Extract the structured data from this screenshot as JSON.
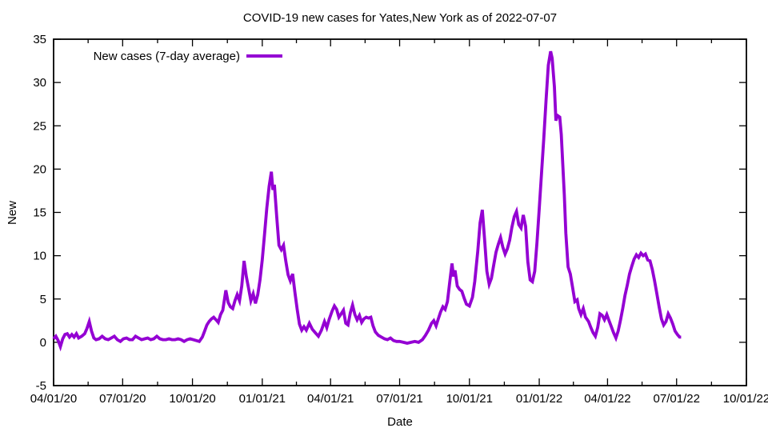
{
  "page": {
    "title": "COVID-19 new cases for Yates,New York as of 2022-07-07"
  },
  "chart_data": {
    "type": "line",
    "title": "COVID-19 new cases for Yates,New York as of 2022-07-07",
    "xlabel": "Date",
    "ylabel": "New",
    "grid": false,
    "background": "#ffffff",
    "line_color": "#9400d3",
    "legend": {
      "label": "New cases (7-day average)",
      "position": "top-left-inside"
    },
    "ylim": [
      -5,
      35
    ],
    "y_tick_step": 5,
    "x_range": [
      "2020-04-01",
      "2022-10-01"
    ],
    "x_ticks": [
      {
        "date": "2020-04-01",
        "label": "04/01/20"
      },
      {
        "date": "2020-07-01",
        "label": "07/01/20"
      },
      {
        "date": "2020-10-01",
        "label": "10/01/20"
      },
      {
        "date": "2021-01-01",
        "label": "01/01/21"
      },
      {
        "date": "2021-04-01",
        "label": "04/01/21"
      },
      {
        "date": "2021-07-01",
        "label": "07/01/21"
      },
      {
        "date": "2021-10-01",
        "label": "10/01/21"
      },
      {
        "date": "2022-01-01",
        "label": "01/01/22"
      },
      {
        "date": "2022-04-01",
        "label": "04/01/22"
      },
      {
        "date": "2022-07-01",
        "label": "07/01/22"
      },
      {
        "date": "2022-10-01",
        "label": "10/01/22"
      }
    ],
    "series": [
      {
        "name": "New cases (7-day average)",
        "color": "#9400d3",
        "points": [
          [
            "2020-04-01",
            0.4
          ],
          [
            "2020-04-04",
            0.7
          ],
          [
            "2020-04-07",
            0.2
          ],
          [
            "2020-04-10",
            -0.5
          ],
          [
            "2020-04-13",
            0.4
          ],
          [
            "2020-04-16",
            0.9
          ],
          [
            "2020-04-19",
            1.0
          ],
          [
            "2020-04-22",
            0.6
          ],
          [
            "2020-04-25",
            0.9
          ],
          [
            "2020-04-28",
            0.6
          ],
          [
            "2020-05-01",
            1.0
          ],
          [
            "2020-05-04",
            0.5
          ],
          [
            "2020-05-08",
            0.7
          ],
          [
            "2020-05-12",
            1.0
          ],
          [
            "2020-05-15",
            1.6
          ],
          [
            "2020-05-18",
            2.4
          ],
          [
            "2020-05-21",
            1.3
          ],
          [
            "2020-05-24",
            0.5
          ],
          [
            "2020-05-27",
            0.3
          ],
          [
            "2020-05-31",
            0.4
          ],
          [
            "2020-06-04",
            0.7
          ],
          [
            "2020-06-08",
            0.4
          ],
          [
            "2020-06-12",
            0.3
          ],
          [
            "2020-06-16",
            0.5
          ],
          [
            "2020-06-20",
            0.7
          ],
          [
            "2020-06-24",
            0.3
          ],
          [
            "2020-06-28",
            0.1
          ],
          [
            "2020-07-02",
            0.4
          ],
          [
            "2020-07-06",
            0.5
          ],
          [
            "2020-07-10",
            0.3
          ],
          [
            "2020-07-14",
            0.3
          ],
          [
            "2020-07-18",
            0.7
          ],
          [
            "2020-07-22",
            0.5
          ],
          [
            "2020-07-26",
            0.3
          ],
          [
            "2020-07-30",
            0.4
          ],
          [
            "2020-08-03",
            0.5
          ],
          [
            "2020-08-07",
            0.3
          ],
          [
            "2020-08-11",
            0.4
          ],
          [
            "2020-08-15",
            0.7
          ],
          [
            "2020-08-19",
            0.4
          ],
          [
            "2020-08-23",
            0.3
          ],
          [
            "2020-08-27",
            0.3
          ],
          [
            "2020-08-31",
            0.4
          ],
          [
            "2020-09-04",
            0.3
          ],
          [
            "2020-09-08",
            0.3
          ],
          [
            "2020-09-12",
            0.4
          ],
          [
            "2020-09-16",
            0.3
          ],
          [
            "2020-09-20",
            0.1
          ],
          [
            "2020-09-24",
            0.3
          ],
          [
            "2020-09-28",
            0.4
          ],
          [
            "2020-10-02",
            0.3
          ],
          [
            "2020-10-06",
            0.2
          ],
          [
            "2020-10-10",
            0.1
          ],
          [
            "2020-10-14",
            0.6
          ],
          [
            "2020-10-17",
            1.3
          ],
          [
            "2020-10-20",
            2.0
          ],
          [
            "2020-10-23",
            2.4
          ],
          [
            "2020-10-26",
            2.7
          ],
          [
            "2020-10-29",
            2.9
          ],
          [
            "2020-11-01",
            2.6
          ],
          [
            "2020-11-04",
            2.3
          ],
          [
            "2020-11-07",
            3.2
          ],
          [
            "2020-11-10",
            3.7
          ],
          [
            "2020-11-14",
            6.0
          ],
          [
            "2020-11-17",
            4.6
          ],
          [
            "2020-11-20",
            4.1
          ],
          [
            "2020-11-23",
            3.9
          ],
          [
            "2020-11-26",
            4.8
          ],
          [
            "2020-11-29",
            5.5
          ],
          [
            "2020-12-02",
            4.8
          ],
          [
            "2020-12-05",
            6.5
          ],
          [
            "2020-12-08",
            9.4
          ],
          [
            "2020-12-11",
            7.6
          ],
          [
            "2020-12-14",
            6.2
          ],
          [
            "2020-12-17",
            4.8
          ],
          [
            "2020-12-20",
            5.6
          ],
          [
            "2020-12-23",
            4.5
          ],
          [
            "2020-12-26",
            5.5
          ],
          [
            "2020-12-29",
            7.2
          ],
          [
            "2021-01-01",
            9.5
          ],
          [
            "2021-01-04",
            12.5
          ],
          [
            "2021-01-07",
            15.5
          ],
          [
            "2021-01-10",
            18.0
          ],
          [
            "2021-01-13",
            19.7
          ],
          [
            "2021-01-15",
            17.6
          ],
          [
            "2021-01-17",
            18.2
          ],
          [
            "2021-01-20",
            14.5
          ],
          [
            "2021-01-23",
            11.2
          ],
          [
            "2021-01-26",
            10.7
          ],
          [
            "2021-01-29",
            11.2
          ],
          [
            "2021-02-01",
            9.4
          ],
          [
            "2021-02-04",
            7.8
          ],
          [
            "2021-02-07",
            7.1
          ],
          [
            "2021-02-10",
            7.9
          ],
          [
            "2021-02-13",
            5.8
          ],
          [
            "2021-02-16",
            3.8
          ],
          [
            "2021-02-19",
            2.1
          ],
          [
            "2021-02-22",
            1.4
          ],
          [
            "2021-02-25",
            1.8
          ],
          [
            "2021-02-28",
            1.4
          ],
          [
            "2021-03-04",
            2.2
          ],
          [
            "2021-03-08",
            1.5
          ],
          [
            "2021-03-12",
            1.1
          ],
          [
            "2021-03-16",
            0.7
          ],
          [
            "2021-03-20",
            1.4
          ],
          [
            "2021-03-24",
            2.4
          ],
          [
            "2021-03-27",
            1.7
          ],
          [
            "2021-03-30",
            2.6
          ],
          [
            "2021-04-03",
            3.6
          ],
          [
            "2021-04-06",
            4.2
          ],
          [
            "2021-04-09",
            3.8
          ],
          [
            "2021-04-12",
            2.9
          ],
          [
            "2021-04-15",
            3.3
          ],
          [
            "2021-04-18",
            3.7
          ],
          [
            "2021-04-21",
            2.2
          ],
          [
            "2021-04-24",
            2.0
          ],
          [
            "2021-04-27",
            3.4
          ],
          [
            "2021-04-30",
            4.3
          ],
          [
            "2021-05-03",
            3.2
          ],
          [
            "2021-05-06",
            2.6
          ],
          [
            "2021-05-09",
            3.1
          ],
          [
            "2021-05-12",
            2.3
          ],
          [
            "2021-05-15",
            2.7
          ],
          [
            "2021-05-18",
            2.9
          ],
          [
            "2021-05-21",
            2.8
          ],
          [
            "2021-05-24",
            2.9
          ],
          [
            "2021-05-27",
            1.9
          ],
          [
            "2021-05-30",
            1.2
          ],
          [
            "2021-06-03",
            0.8
          ],
          [
            "2021-06-07",
            0.6
          ],
          [
            "2021-06-11",
            0.4
          ],
          [
            "2021-06-15",
            0.3
          ],
          [
            "2021-06-19",
            0.5
          ],
          [
            "2021-06-23",
            0.2
          ],
          [
            "2021-06-27",
            0.1
          ],
          [
            "2021-07-01",
            0.1
          ],
          [
            "2021-07-06",
            0.0
          ],
          [
            "2021-07-11",
            -0.1
          ],
          [
            "2021-07-16",
            0.0
          ],
          [
            "2021-07-21",
            0.1
          ],
          [
            "2021-07-26",
            0.0
          ],
          [
            "2021-07-31",
            0.3
          ],
          [
            "2021-08-04",
            0.8
          ],
          [
            "2021-08-08",
            1.4
          ],
          [
            "2021-08-12",
            2.2
          ],
          [
            "2021-08-15",
            2.5
          ],
          [
            "2021-08-18",
            1.9
          ],
          [
            "2021-08-21",
            2.7
          ],
          [
            "2021-08-24",
            3.5
          ],
          [
            "2021-08-27",
            4.1
          ],
          [
            "2021-08-30",
            3.8
          ],
          [
            "2021-09-02",
            4.7
          ],
          [
            "2021-09-05",
            6.9
          ],
          [
            "2021-09-08",
            9.1
          ],
          [
            "2021-09-10",
            7.6
          ],
          [
            "2021-09-12",
            8.3
          ],
          [
            "2021-09-15",
            6.5
          ],
          [
            "2021-09-18",
            6.1
          ],
          [
            "2021-09-21",
            5.9
          ],
          [
            "2021-09-24",
            5.1
          ],
          [
            "2021-09-27",
            4.4
          ],
          [
            "2021-10-01",
            4.2
          ],
          [
            "2021-10-05",
            5.2
          ],
          [
            "2021-10-08",
            7.0
          ],
          [
            "2021-10-12",
            10.5
          ],
          [
            "2021-10-15",
            13.8
          ],
          [
            "2021-10-18",
            15.3
          ],
          [
            "2021-10-21",
            11.8
          ],
          [
            "2021-10-24",
            8.2
          ],
          [
            "2021-10-27",
            6.7
          ],
          [
            "2021-10-30",
            7.4
          ],
          [
            "2021-11-02",
            8.9
          ],
          [
            "2021-11-05",
            10.4
          ],
          [
            "2021-11-08",
            11.3
          ],
          [
            "2021-11-11",
            12.1
          ],
          [
            "2021-11-14",
            11.0
          ],
          [
            "2021-11-17",
            10.2
          ],
          [
            "2021-11-20",
            10.8
          ],
          [
            "2021-11-23",
            11.8
          ],
          [
            "2021-11-26",
            13.3
          ],
          [
            "2021-11-29",
            14.5
          ],
          [
            "2021-12-02",
            15.1
          ],
          [
            "2021-12-05",
            13.6
          ],
          [
            "2021-12-08",
            13.2
          ],
          [
            "2021-12-11",
            14.7
          ],
          [
            "2021-12-14",
            13.4
          ],
          [
            "2021-12-17",
            9.3
          ],
          [
            "2021-12-20",
            7.2
          ],
          [
            "2021-12-23",
            7.0
          ],
          [
            "2021-12-26",
            8.2
          ],
          [
            "2021-12-29",
            11.5
          ],
          [
            "2022-01-01",
            15.5
          ],
          [
            "2022-01-04",
            19.5
          ],
          [
            "2022-01-07",
            23.5
          ],
          [
            "2022-01-10",
            28.0
          ],
          [
            "2022-01-13",
            32.0
          ],
          [
            "2022-01-16",
            33.6
          ],
          [
            "2022-01-18",
            32.8
          ],
          [
            "2022-01-21",
            29.5
          ],
          [
            "2022-01-23",
            25.6
          ],
          [
            "2022-01-25",
            26.2
          ],
          [
            "2022-01-28",
            26.0
          ],
          [
            "2022-01-30",
            24.0
          ],
          [
            "2022-02-01",
            20.5
          ],
          [
            "2022-02-03",
            17.0
          ],
          [
            "2022-02-05",
            12.6
          ],
          [
            "2022-02-08",
            8.7
          ],
          [
            "2022-02-11",
            7.9
          ],
          [
            "2022-02-14",
            6.3
          ],
          [
            "2022-02-17",
            4.7
          ],
          [
            "2022-02-20",
            4.9
          ],
          [
            "2022-02-22",
            3.9
          ],
          [
            "2022-02-25",
            3.2
          ],
          [
            "2022-02-28",
            3.9
          ],
          [
            "2022-03-03",
            2.9
          ],
          [
            "2022-03-07",
            2.4
          ],
          [
            "2022-03-10",
            1.7
          ],
          [
            "2022-03-13",
            1.1
          ],
          [
            "2022-03-16",
            0.7
          ],
          [
            "2022-03-19",
            1.7
          ],
          [
            "2022-03-22",
            3.3
          ],
          [
            "2022-03-25",
            3.1
          ],
          [
            "2022-03-28",
            2.6
          ],
          [
            "2022-03-31",
            3.2
          ],
          [
            "2022-04-03",
            2.5
          ],
          [
            "2022-04-06",
            1.8
          ],
          [
            "2022-04-09",
            1.1
          ],
          [
            "2022-04-12",
            0.5
          ],
          [
            "2022-04-15",
            1.3
          ],
          [
            "2022-04-18",
            2.5
          ],
          [
            "2022-04-21",
            3.9
          ],
          [
            "2022-04-24",
            5.4
          ],
          [
            "2022-04-27",
            6.6
          ],
          [
            "2022-04-30",
            7.9
          ],
          [
            "2022-05-03",
            8.8
          ],
          [
            "2022-05-06",
            9.6
          ],
          [
            "2022-05-09",
            10.1
          ],
          [
            "2022-05-12",
            9.8
          ],
          [
            "2022-05-15",
            10.3
          ],
          [
            "2022-05-18",
            10.0
          ],
          [
            "2022-05-21",
            10.2
          ],
          [
            "2022-05-24",
            9.5
          ],
          [
            "2022-05-27",
            9.4
          ],
          [
            "2022-05-30",
            8.4
          ],
          [
            "2022-06-02",
            7.1
          ],
          [
            "2022-06-05",
            5.6
          ],
          [
            "2022-06-08",
            4.1
          ],
          [
            "2022-06-11",
            2.7
          ],
          [
            "2022-06-14",
            2.0
          ],
          [
            "2022-06-17",
            2.4
          ],
          [
            "2022-06-20",
            3.3
          ],
          [
            "2022-06-23",
            2.8
          ],
          [
            "2022-06-26",
            2.1
          ],
          [
            "2022-06-29",
            1.3
          ],
          [
            "2022-07-02",
            0.9
          ],
          [
            "2022-07-05",
            0.6
          ],
          [
            "2022-07-07",
            0.6
          ]
        ]
      }
    ]
  }
}
